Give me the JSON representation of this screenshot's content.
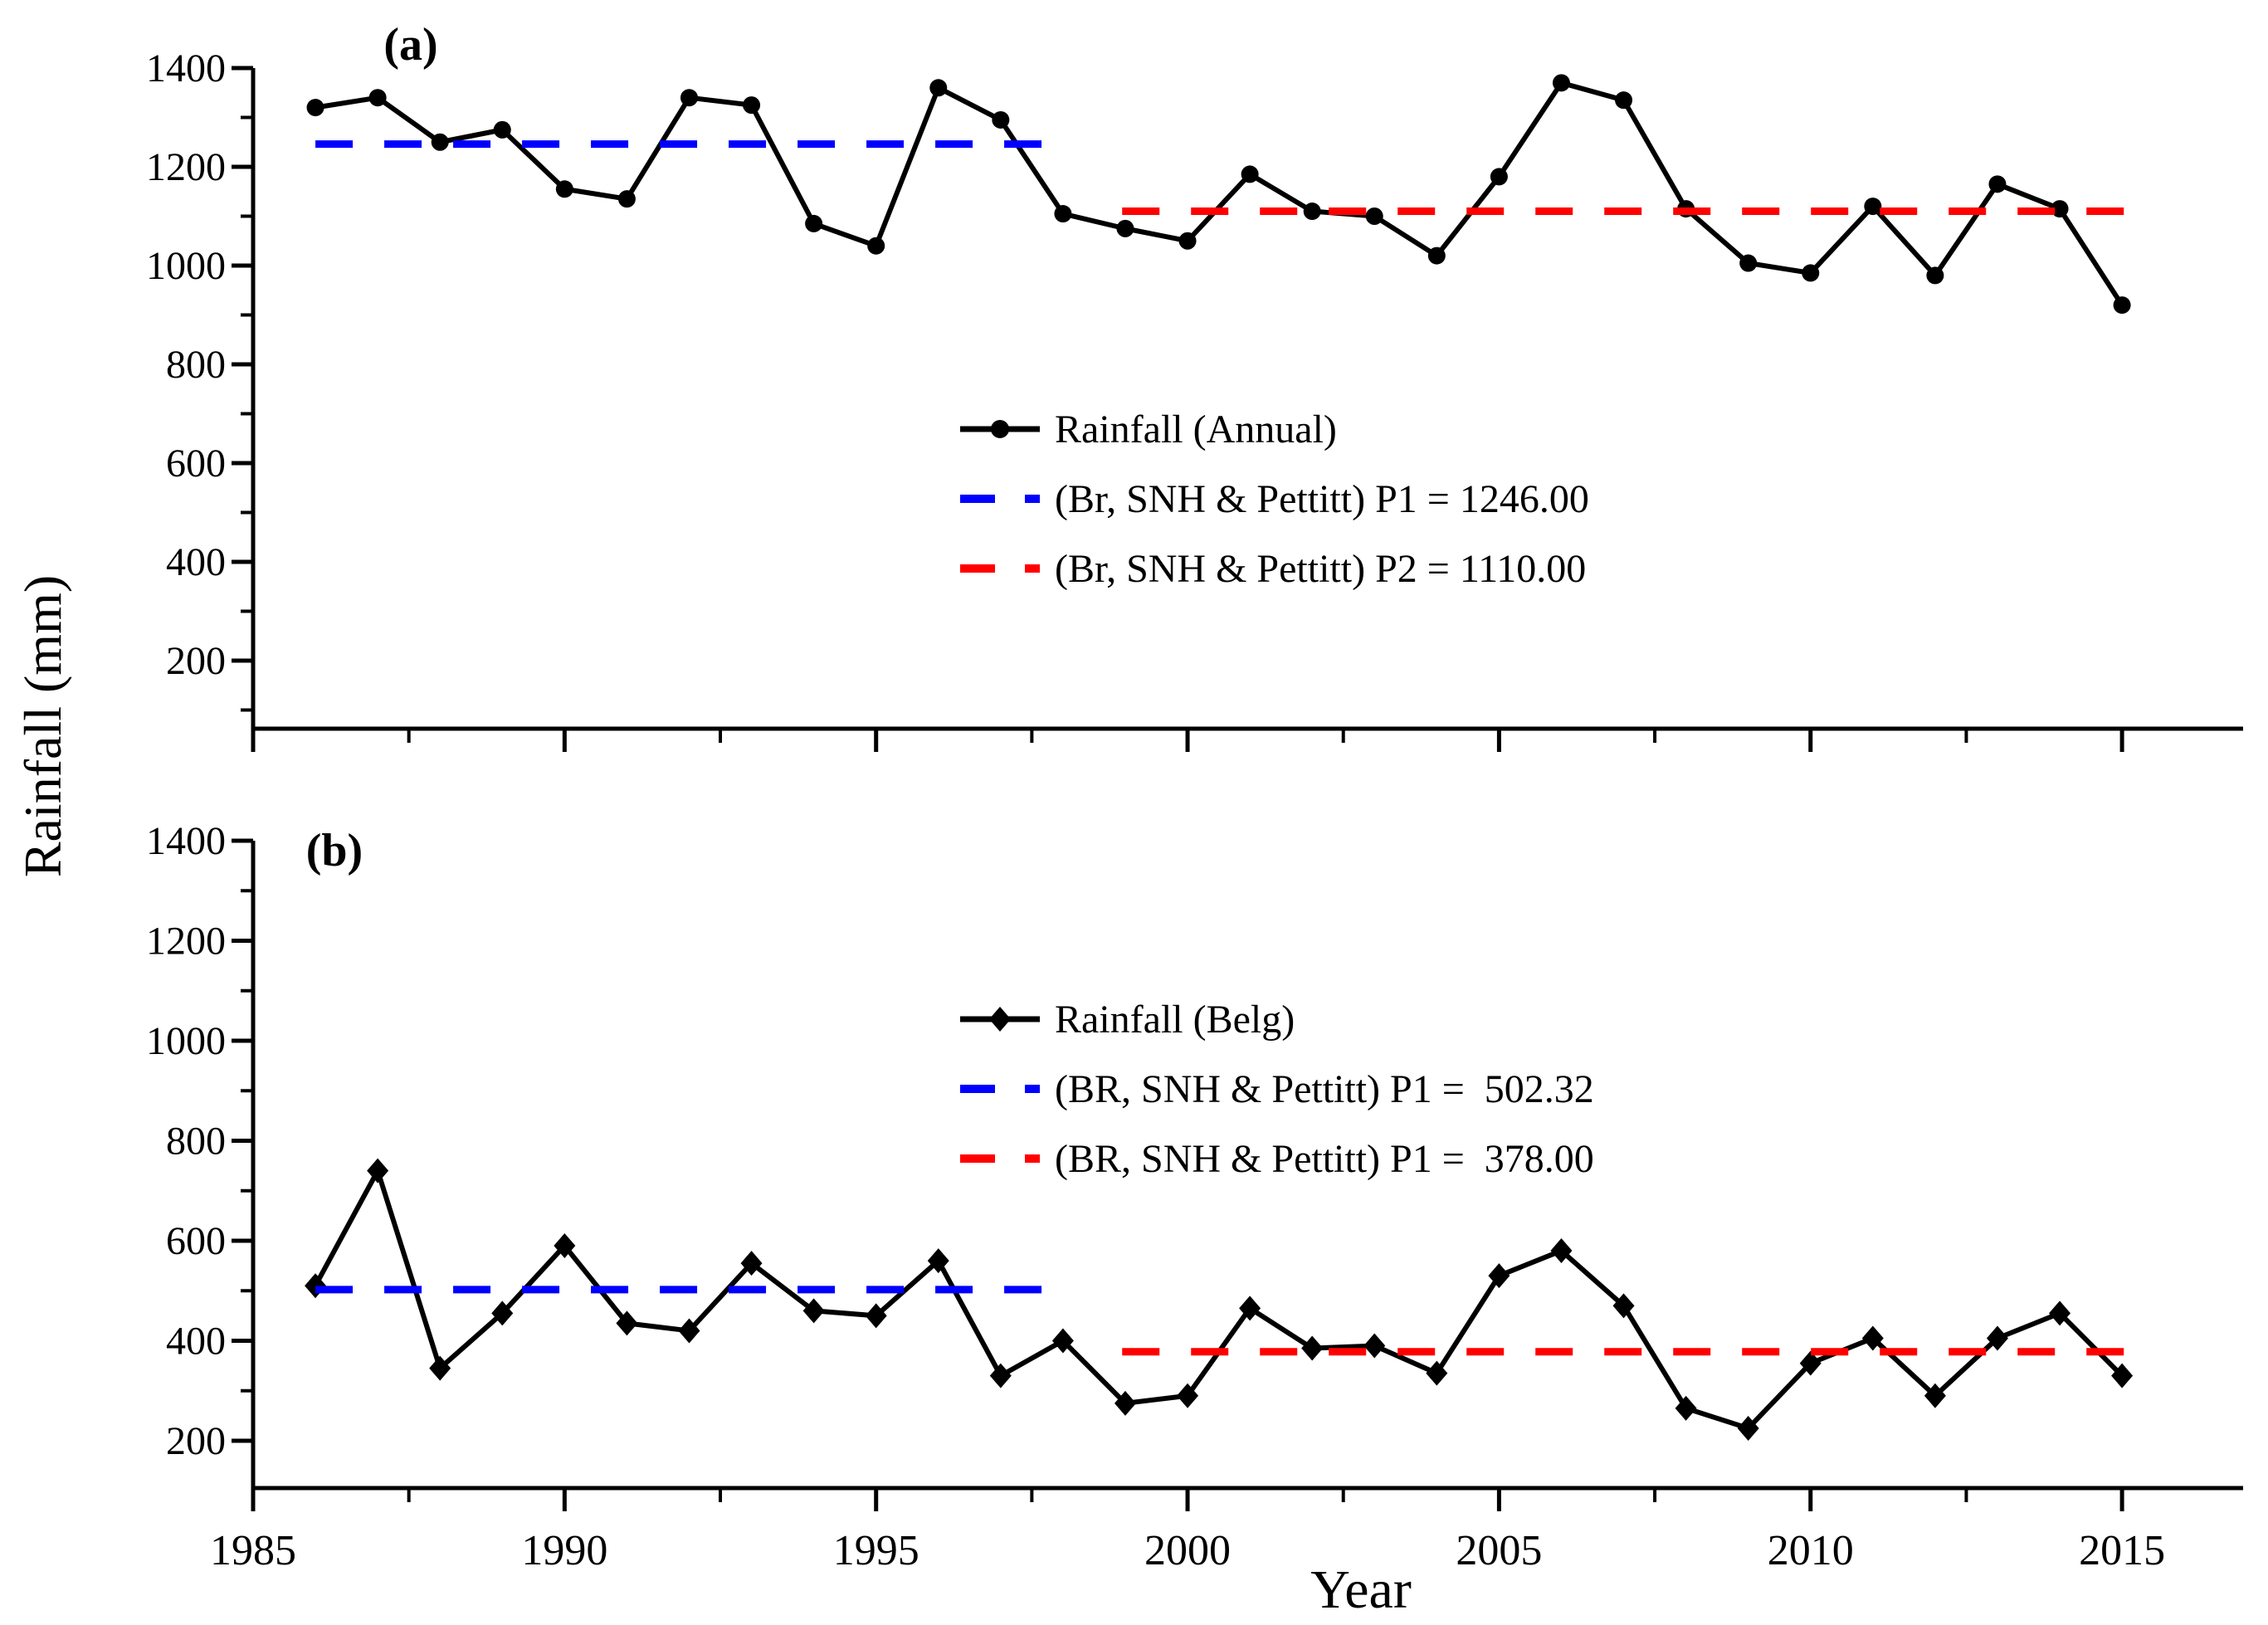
{
  "figure": {
    "ylabel": "Rainfall (mm)",
    "xlabel": "Year",
    "background_color": "#ffffff",
    "text_color": "#000000"
  },
  "chart_data": [
    {
      "type": "line",
      "panel_label": "(a)",
      "xlabel": "Year",
      "ylabel": "Rainfall (mm)",
      "xlim": [
        1985,
        2016.9
      ],
      "ylim": [
        62,
        1400
      ],
      "yticks": [
        200,
        400,
        600,
        800,
        1000,
        1200,
        1400
      ],
      "xticks": [
        1985,
        1990,
        1995,
        2000,
        2005,
        2010,
        2015
      ],
      "xtick_labels_visible": false,
      "grid": false,
      "legend_position": "center",
      "x": [
        1986,
        1987,
        1988,
        1989,
        1990,
        1991,
        1992,
        1993,
        1994,
        1995,
        1996,
        1997,
        1998,
        1999,
        2000,
        2001,
        2002,
        2003,
        2004,
        2005,
        2006,
        2007,
        2008,
        2009,
        2010,
        2011,
        2012,
        2013,
        2014,
        2015
      ],
      "series": [
        {
          "name": "Rainfall (Annual)",
          "kind": "line",
          "color": "#000000",
          "marker": "circle",
          "values": [
            1320,
            1340,
            1250,
            1275,
            1155,
            1135,
            1340,
            1325,
            1085,
            1040,
            1360,
            1295,
            1105,
            1075,
            1050,
            1185,
            1110,
            1100,
            1020,
            1180,
            1370,
            1335,
            1115,
            1005,
            985,
            1120,
            980,
            1165,
            1115,
            920
          ]
        },
        {
          "name": "(Br, SNH & Pettitt) P1 = 1246.00",
          "kind": "hline",
          "color": "#0000ff",
          "line_style": "dashed",
          "value": 1246.0,
          "x_start": 1986,
          "x_end": 1997.9
        },
        {
          "name": "(Br, SNH & Pettitt) P2 = 1110.00",
          "kind": "hline",
          "color": "#ff0000",
          "line_style": "dashed",
          "value": 1110.0,
          "x_start": 1998.95,
          "x_end": 2015.05
        }
      ]
    },
    {
      "type": "line",
      "panel_label": "(b)",
      "xlabel": "Year",
      "ylabel": "Rainfall (mm)",
      "xlim": [
        1985,
        2016.9
      ],
      "ylim": [
        105,
        1400
      ],
      "yticks": [
        200,
        400,
        600,
        800,
        1000,
        1200,
        1400
      ],
      "xticks": [
        1985,
        1990,
        1995,
        2000,
        2005,
        2010,
        2015
      ],
      "xtick_labels_visible": true,
      "grid": false,
      "legend_position": "center",
      "x": [
        1986,
        1987,
        1988,
        1989,
        1990,
        1991,
        1992,
        1993,
        1994,
        1995,
        1996,
        1997,
        1998,
        1999,
        2000,
        2001,
        2002,
        2003,
        2004,
        2005,
        2006,
        2007,
        2008,
        2009,
        2010,
        2011,
        2012,
        2013,
        2014,
        2015
      ],
      "series": [
        {
          "name": "Rainfall (Belg)",
          "kind": "line",
          "color": "#000000",
          "marker": "diamond",
          "values": [
            510,
            740,
            345,
            455,
            590,
            435,
            420,
            555,
            460,
            450,
            560,
            330,
            400,
            275,
            290,
            465,
            385,
            390,
            335,
            530,
            580,
            470,
            265,
            225,
            355,
            405,
            290,
            405,
            455,
            330
          ]
        },
        {
          "name": "(BR, SNH & Pettitt) P1 =  502.32",
          "kind": "hline",
          "color": "#0000ff",
          "line_style": "dashed",
          "value": 502.32,
          "x_start": 1986,
          "x_end": 1997.9
        },
        {
          "name": "(BR, SNH & Pettitt) P1 =  378.00",
          "kind": "hline",
          "color": "#ff0000",
          "line_style": "dashed",
          "value": 378.0,
          "x_start": 1998.95,
          "x_end": 2015.05
        }
      ]
    }
  ]
}
